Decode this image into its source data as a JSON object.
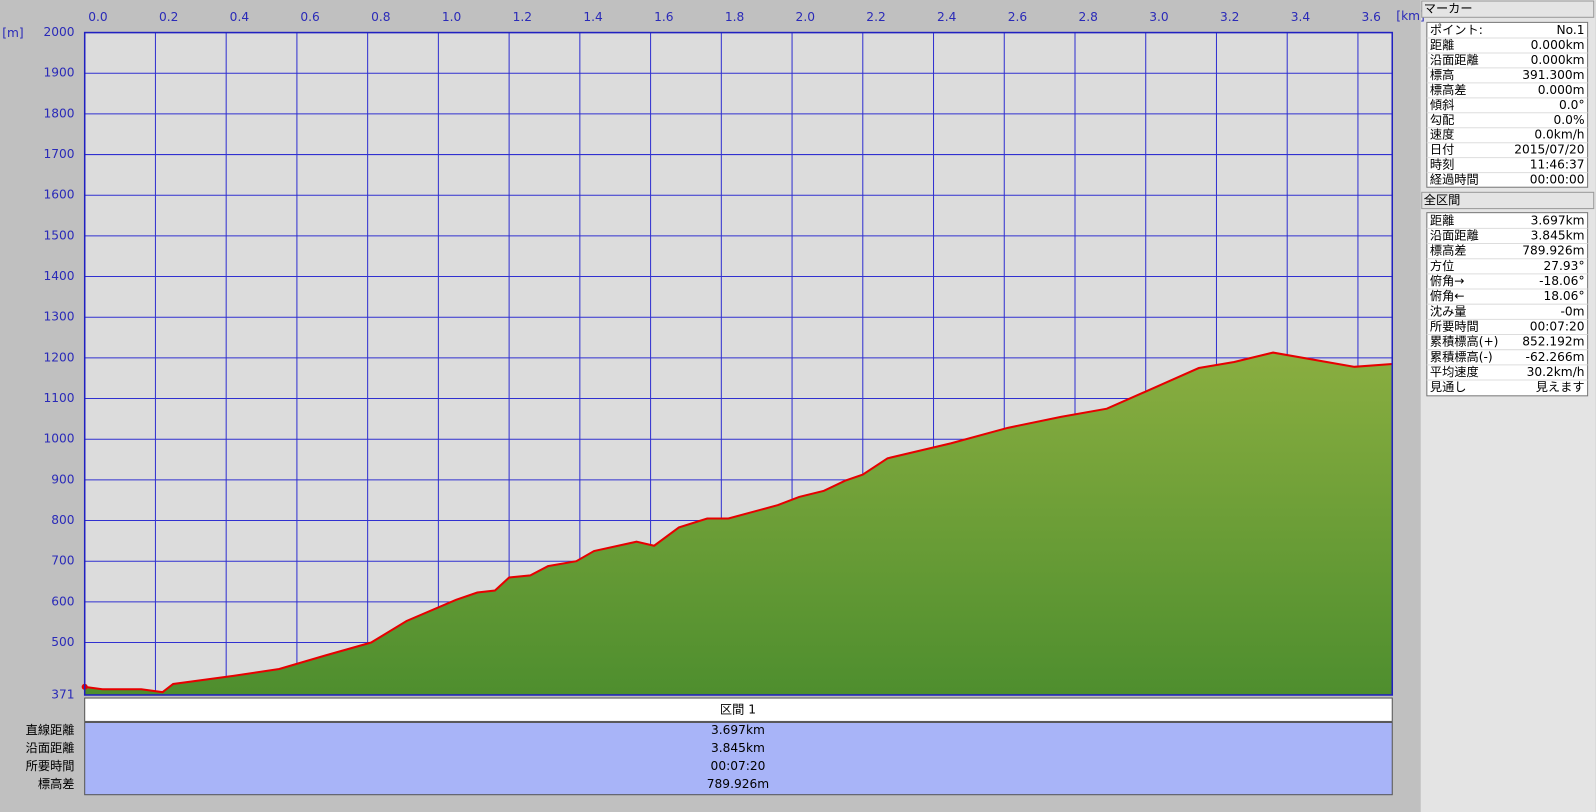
{
  "chart_data": {
    "type": "area",
    "y_unit": "[m]",
    "x_unit": "[km]",
    "x": [
      0,
      0.05,
      0.16,
      0.22,
      0.25,
      0.42,
      0.55,
      0.68,
      0.81,
      0.91,
      1.05,
      1.11,
      1.16,
      1.2,
      1.26,
      1.31,
      1.39,
      1.44,
      1.56,
      1.61,
      1.68,
      1.76,
      1.82,
      1.96,
      2.02,
      2.09,
      2.15,
      2.2,
      2.27,
      2.45,
      2.61,
      2.76,
      2.89,
      3.15,
      3.25,
      3.36,
      3.59,
      3.697
    ],
    "series": [
      {
        "color": "#e60000",
        "fill": "#5e9a34",
        "values": [
          391,
          385,
          385,
          378,
          398,
          418,
          435,
          468,
          500,
          553,
          605,
          623,
          628,
          660,
          665,
          688,
          700,
          725,
          748,
          738,
          783,
          805,
          805,
          838,
          858,
          873,
          898,
          913,
          953,
          990,
          1028,
          1055,
          1075,
          1175,
          1190,
          1213,
          1178,
          1185
        ]
      }
    ],
    "xlim": [
      0,
      3.697
    ],
    "xticks": [
      {
        "value": 0,
        "label": "0.0"
      },
      0.2,
      0.4,
      0.6,
      0.8,
      {
        "value": 1,
        "label": "1.0"
      },
      1.2,
      1.4,
      1.6,
      1.8,
      {
        "value": 2,
        "label": "2.0"
      },
      2.2,
      2.4,
      2.6,
      2.8,
      {
        "value": 3,
        "label": "3.0"
      },
      3.2,
      3.4,
      3.6
    ],
    "ylim": [
      371,
      2000
    ],
    "yticks": [
      371,
      500,
      600,
      700,
      800,
      900,
      1000,
      1100,
      1200,
      1300,
      1400,
      1500,
      1600,
      1700,
      1800,
      1900,
      2000
    ],
    "grid": true
  },
  "segment_table": {
    "header": "区間 1",
    "rows": [
      {
        "label": "直線距離",
        "value": "3.697km"
      },
      {
        "label": "沿面距離",
        "value": "3.845km"
      },
      {
        "label": "所要時間",
        "value": "00:07:20"
      },
      {
        "label": "標高差",
        "value": "789.926m"
      }
    ]
  },
  "marker_panel": {
    "title": "マーカー",
    "rows": [
      {
        "label": "ポイント:",
        "value": "No.1"
      },
      {
        "label": "距離",
        "value": "0.000km"
      },
      {
        "label": "沿面距離",
        "value": "0.000km"
      },
      {
        "label": "標高",
        "value": "391.300m"
      },
      {
        "label": "標高差",
        "value": "0.000m"
      },
      {
        "label": "傾斜",
        "value": "0.0°"
      },
      {
        "label": "勾配",
        "value": "0.0%"
      },
      {
        "label": "速度",
        "value": "0.0km/h"
      },
      {
        "label": "日付",
        "value": "2015/07/20"
      },
      {
        "label": "時刻",
        "value": "11:46:37"
      },
      {
        "label": "経過時間",
        "value": "00:00:00"
      }
    ]
  },
  "total_panel": {
    "title": "全区間",
    "rows": [
      {
        "label": "距離",
        "value": "3.697km"
      },
      {
        "label": "沿面距離",
        "value": "3.845km"
      },
      {
        "label": "標高差",
        "value": "789.926m"
      },
      {
        "label": "方位",
        "value": "27.93°"
      },
      {
        "label": "俯角→",
        "value": "-18.06°"
      },
      {
        "label": "俯角←",
        "value": "18.06°"
      },
      {
        "label": "沈み量",
        "value": "-0m"
      },
      {
        "label": "所要時間",
        "value": "00:07:20"
      },
      {
        "label": "累積標高(+)",
        "value": "852.192m"
      },
      {
        "label": "累積標高(-)",
        "value": "-62.266m"
      },
      {
        "label": "平均速度",
        "value": "30.2km/h"
      },
      {
        "label": "見通し",
        "value": "見えます"
      }
    ]
  }
}
